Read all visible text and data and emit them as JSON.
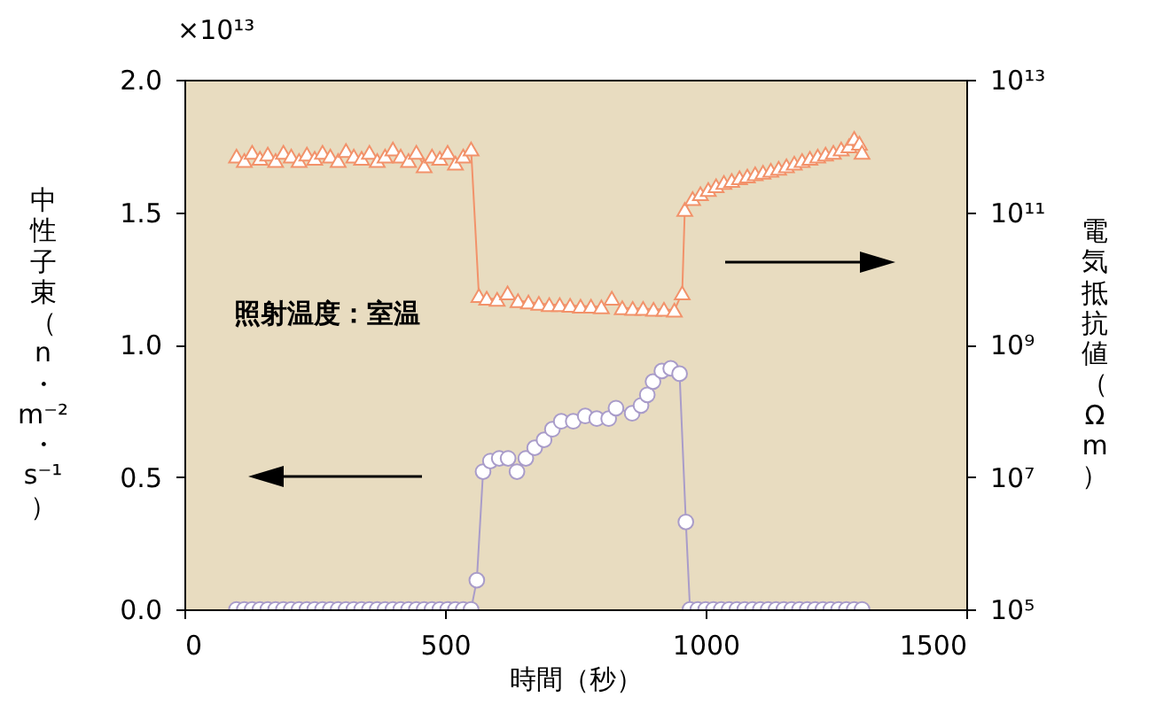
{
  "chart_data": {
    "type": "line",
    "xlabel": "時間（秒）",
    "ylabel": "中性子束（n・m⁻²・s⁻¹）",
    "y2label": "電気抵抗値（Ωm）",
    "annotations": [
      "×10¹³",
      "照射温度：室温"
    ],
    "xlim": [
      0,
      1500
    ],
    "xticks": [
      0,
      500,
      1000,
      1500
    ],
    "ylim": [
      0,
      2.0
    ],
    "yticks": [
      {
        "value": 0,
        "label": "0.0"
      },
      {
        "value": 0.5,
        "label": "0.5"
      },
      {
        "value": 1,
        "label": "1.0"
      },
      {
        "value": 1.5,
        "label": "1.5"
      },
      {
        "value": 2,
        "label": "2.0"
      }
    ],
    "y2lim": [
      100000,
      10000000000000
    ],
    "y2ticks": [
      {
        "value": 100000,
        "label": "10⁵"
      },
      {
        "value": 10000000,
        "label": "10⁷"
      },
      {
        "value": 1000000000,
        "label": "10⁹"
      },
      {
        "value": 100000000000,
        "label": "10¹¹"
      },
      {
        "value": 10000000000000,
        "label": "10¹³"
      }
    ],
    "log": "y2",
    "grid": false,
    "series": [
      {
        "color": "#a99cc9",
        "marker": "circle",
        "x": [
          100,
          115,
          130,
          145,
          160,
          175,
          190,
          205,
          220,
          235,
          250,
          265,
          280,
          295,
          310,
          325,
          340,
          355,
          370,
          385,
          400,
          415,
          430,
          445,
          460,
          475,
          490,
          505,
          520,
          535,
          550,
          561,
          573,
          587,
          604,
          621,
          638,
          655,
          672,
          690,
          706,
          723,
          746,
          769,
          791,
          814,
          828,
          859,
          876,
          888,
          899,
          916,
          933,
          950,
          962,
          970,
          985,
          1000,
          1015,
          1030,
          1045,
          1060,
          1075,
          1090,
          1105,
          1120,
          1135,
          1150,
          1165,
          1180,
          1195,
          1210,
          1225,
          1240,
          1255,
          1270,
          1285,
          1300
        ],
        "values": [
          0,
          0,
          0,
          0,
          0,
          0,
          0,
          0,
          0,
          0,
          0,
          0,
          0,
          0,
          0,
          0,
          0,
          0,
          0,
          0,
          0,
          0,
          0,
          0,
          0,
          0,
          0,
          0,
          0,
          0,
          0,
          0.11,
          0.52,
          0.56,
          0.57,
          0.57,
          0.52,
          0.57,
          0.61,
          0.64,
          0.68,
          0.71,
          0.71,
          0.73,
          0.72,
          0.72,
          0.76,
          0.74,
          0.77,
          0.81,
          0.86,
          0.9,
          0.91,
          0.89,
          0.33,
          0,
          0,
          0,
          0,
          0,
          0,
          0,
          0,
          0,
          0,
          0,
          0,
          0,
          0,
          0,
          0,
          0,
          0,
          0,
          0,
          0,
          0,
          0
        ]
      },
      {
        "color": "#f2926a",
        "marker": "triangle",
        "axis": "y2",
        "x": [
          100,
          115,
          130,
          145,
          160,
          175,
          190,
          205,
          220,
          235,
          250,
          265,
          280,
          295,
          310,
          325,
          340,
          355,
          370,
          385,
          400,
          415,
          430,
          445,
          460,
          475,
          490,
          505,
          520,
          535,
          550,
          565,
          580,
          600,
          620,
          640,
          660,
          680,
          700,
          720,
          740,
          760,
          780,
          800,
          820,
          840,
          860,
          880,
          900,
          920,
          940,
          955,
          960,
          975,
          990,
          1005,
          1020,
          1035,
          1050,
          1065,
          1080,
          1095,
          1110,
          1125,
          1140,
          1155,
          1170,
          1185,
          1200,
          1215,
          1230,
          1245,
          1260,
          1275,
          1285,
          1295,
          1300
        ],
        "values": [
          700000000000,
          600000000000,
          800000000000,
          650000000000,
          750000000000,
          600000000000,
          800000000000,
          700000000000,
          600000000000,
          750000000000,
          650000000000,
          800000000000,
          700000000000,
          600000000000,
          850000000000,
          700000000000,
          650000000000,
          800000000000,
          600000000000,
          700000000000,
          900000000000,
          700000000000,
          600000000000,
          800000000000,
          500000000000,
          700000000000,
          650000000000,
          800000000000,
          550000000000,
          700000000000,
          900000000000,
          5500000000,
          5000000000,
          4800000000,
          6000000000,
          4600000000,
          4400000000,
          4200000000,
          4000000000,
          4000000000,
          3900000000,
          3800000000,
          3800000000,
          3700000000,
          5000000000,
          3600000000,
          3500000000,
          3500000000,
          3400000000,
          3400000000,
          3300000000,
          6000000000,
          110000000000,
          160000000000,
          190000000000,
          220000000000,
          250000000000,
          280000000000,
          300000000000,
          330000000000,
          350000000000,
          380000000000,
          400000000000,
          430000000000,
          460000000000,
          500000000000,
          550000000000,
          600000000000,
          650000000000,
          700000000000,
          750000000000,
          800000000000,
          900000000000,
          1000000000000,
          1300000000000,
          1100000000000,
          800000000000
        ]
      }
    ]
  }
}
